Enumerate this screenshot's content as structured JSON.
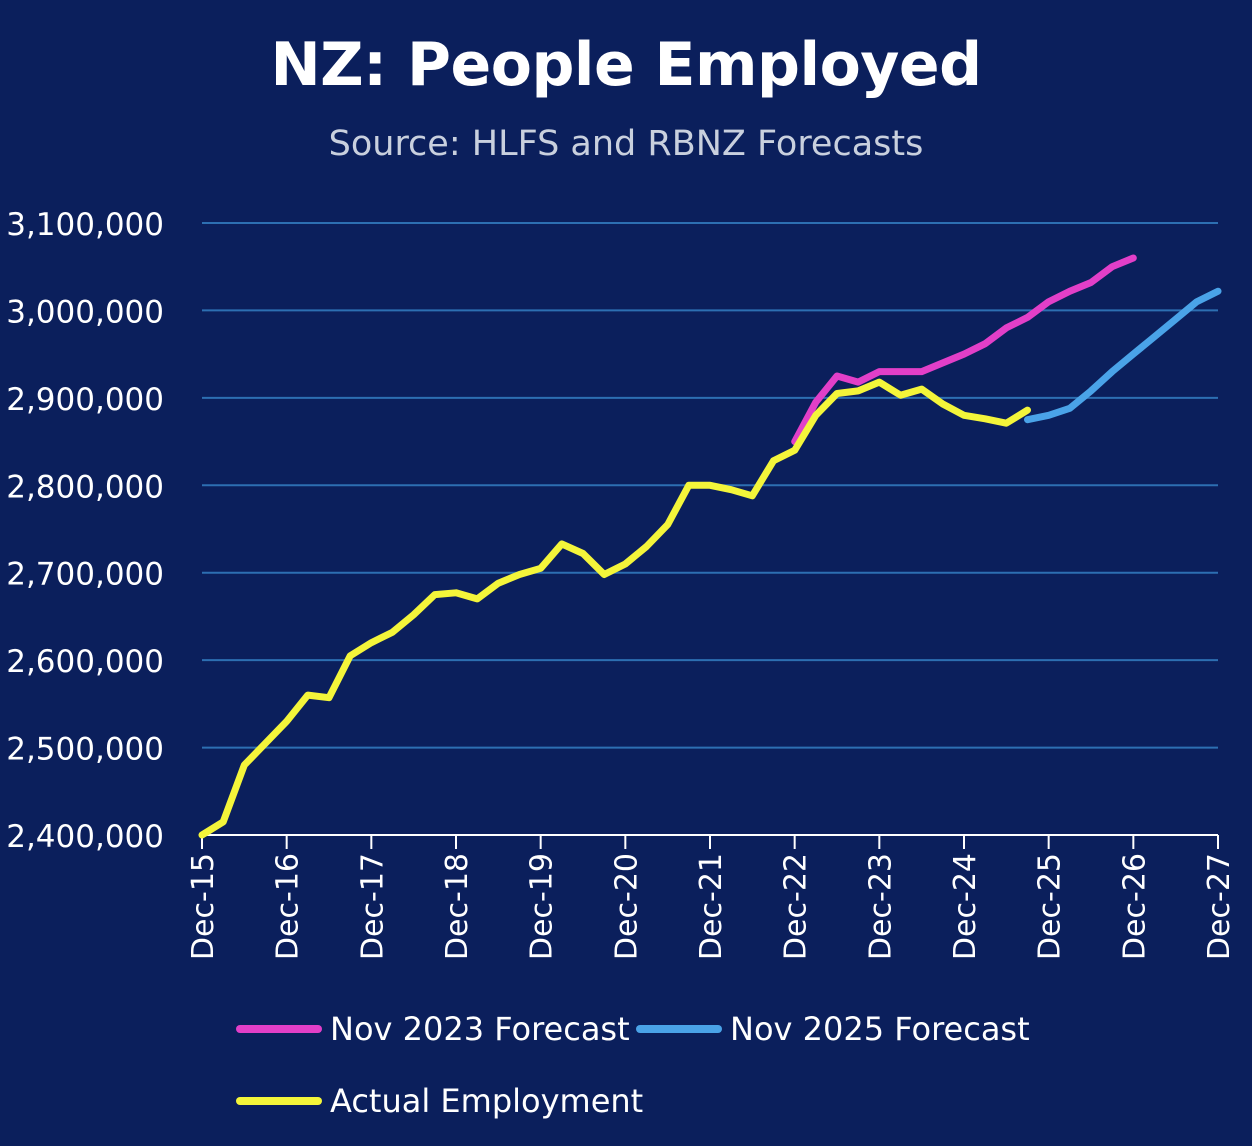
{
  "title": "NZ: People Employed",
  "subtitle": "Source: HLFS and RBNZ Forecasts",
  "colors": {
    "background": "#0b1f5c",
    "gridline": "#2d6fb2",
    "axis_text": "#ffffff"
  },
  "chart_data": {
    "type": "line",
    "title": "NZ: People Employed",
    "subtitle": "Source: HLFS and RBNZ Forecasts",
    "xlabel": "",
    "ylabel": "",
    "ylim": [
      2400000,
      3100000
    ],
    "yticks": [
      2400000,
      2500000,
      2600000,
      2700000,
      2800000,
      2900000,
      3000000,
      3100000
    ],
    "ytick_labels": [
      "2,400,000",
      "2,500,000",
      "2,600,000",
      "2,700,000",
      "2,800,000",
      "2,900,000",
      "3,000,000",
      "3,100,000"
    ],
    "xlim": [
      "Dec-15",
      "Dec-27"
    ],
    "xtick_labels": [
      "Dec-15",
      "Dec-16",
      "Dec-17",
      "Dec-18",
      "Dec-19",
      "Dec-20",
      "Dec-21",
      "Dec-22",
      "Dec-23",
      "Dec-24",
      "Dec-25",
      "Dec-26",
      "Dec-27"
    ],
    "grid": true,
    "legend": "bottom",
    "series": [
      {
        "name": "Nov 2023 Forecast",
        "color": "#e23fc8",
        "x": [
          "Dec-22",
          "Mar-23",
          "Jun-23",
          "Sep-23",
          "Dec-23",
          "Mar-24",
          "Jun-24",
          "Sep-24",
          "Dec-24",
          "Mar-25",
          "Jun-25",
          "Sep-25",
          "Dec-25",
          "Mar-26",
          "Jun-26",
          "Sep-26",
          "Dec-26"
        ],
        "values": [
          2850000,
          2895000,
          2925000,
          2918000,
          2930000,
          2930000,
          2930000,
          2940000,
          2950000,
          2962000,
          2980000,
          2992000,
          3010000,
          3022000,
          3032000,
          3050000,
          3060000
        ]
      },
      {
        "name": "Nov 2025 Forecast",
        "color": "#4aa3e8",
        "x": [
          "Sep-25",
          "Dec-25",
          "Mar-26",
          "Jun-26",
          "Sep-26",
          "Dec-26",
          "Mar-27",
          "Jun-27",
          "Sep-27",
          "Dec-27"
        ],
        "values": [
          2875000,
          2880000,
          2888000,
          2908000,
          2930000,
          2950000,
          2970000,
          2990000,
          3010000,
          3022000
        ]
      },
      {
        "name": "Actual Employment",
        "color": "#f4f53a",
        "x": [
          "Dec-15",
          "Mar-16",
          "Jun-16",
          "Sep-16",
          "Dec-16",
          "Mar-17",
          "Jun-17",
          "Sep-17",
          "Dec-17",
          "Mar-18",
          "Jun-18",
          "Sep-18",
          "Dec-18",
          "Mar-19",
          "Jun-19",
          "Sep-19",
          "Dec-19",
          "Mar-20",
          "Jun-20",
          "Sep-20",
          "Dec-20",
          "Mar-21",
          "Jun-21",
          "Sep-21",
          "Dec-21",
          "Mar-22",
          "Jun-22",
          "Sep-22",
          "Dec-22",
          "Mar-23",
          "Jun-23",
          "Sep-23",
          "Dec-23",
          "Mar-24",
          "Jun-24",
          "Sep-24",
          "Dec-24",
          "Mar-25",
          "Jun-25",
          "Sep-25"
        ],
        "values": [
          2400000,
          2415000,
          2480000,
          2505000,
          2530000,
          2560000,
          2557000,
          2605000,
          2620000,
          2632000,
          2652000,
          2675000,
          2677000,
          2670000,
          2688000,
          2698000,
          2705000,
          2733000,
          2722000,
          2698000,
          2710000,
          2730000,
          2755000,
          2800000,
          2800000,
          2795000,
          2788000,
          2828000,
          2840000,
          2880000,
          2905000,
          2908000,
          2918000,
          2903000,
          2910000,
          2893000,
          2880000,
          2876000,
          2871000,
          2886000
        ]
      }
    ]
  }
}
